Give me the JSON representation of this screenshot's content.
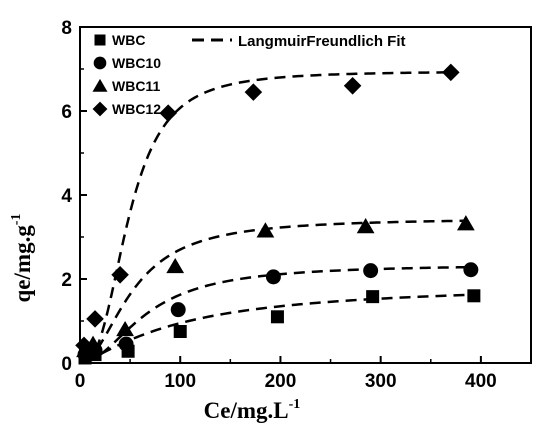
{
  "chart_data": {
    "type": "scatter",
    "title": "",
    "xlabel": "Ce/mg.L",
    "xlabel_sup": "-1",
    "ylabel": "qe/mg.g",
    "ylabel_sup": "-1",
    "xlim": [
      0,
      450
    ],
    "ylim": [
      0,
      8
    ],
    "x_ticks": [
      0,
      100,
      200,
      300,
      400
    ],
    "y_ticks": [
      0,
      2,
      4,
      6,
      8
    ],
    "grid": false,
    "legend_position": "top-left",
    "fit_legend_label": "LangmuirFreundlich Fit",
    "series": [
      {
        "name": "WBC",
        "marker": "square",
        "x": [
          5,
          15,
          48,
          100,
          197,
          292,
          393
        ],
        "y": [
          0.12,
          0.2,
          0.28,
          0.75,
          1.1,
          1.58,
          1.6
        ],
        "fit": {
          "qmax": 1.9,
          "K": 0.01,
          "n": 1.3
        }
      },
      {
        "name": "WBC10",
        "marker": "circle",
        "x": [
          5,
          15,
          46,
          98,
          193,
          290,
          390
        ],
        "y": [
          0.2,
          0.3,
          0.45,
          1.27,
          2.05,
          2.2,
          2.22
        ],
        "fit": {
          "qmax": 2.35,
          "K": 0.015,
          "n": 2.0
        }
      },
      {
        "name": "WBC11",
        "marker": "triangle",
        "x": [
          5,
          13,
          45,
          95,
          185,
          285,
          385
        ],
        "y": [
          0.3,
          0.45,
          0.8,
          2.3,
          3.15,
          3.25,
          3.32
        ],
        "fit": {
          "qmax": 3.45,
          "K": 0.019,
          "n": 2.0
        }
      },
      {
        "name": "WBC12",
        "marker": "diamond",
        "x": [
          4,
          15,
          40,
          88,
          173,
          272,
          370
        ],
        "y": [
          0.42,
          1.05,
          2.1,
          5.95,
          6.45,
          6.6,
          6.92
        ],
        "fit": {
          "qmax": 6.95,
          "K": 0.0205,
          "n": 2.7
        }
      }
    ]
  }
}
